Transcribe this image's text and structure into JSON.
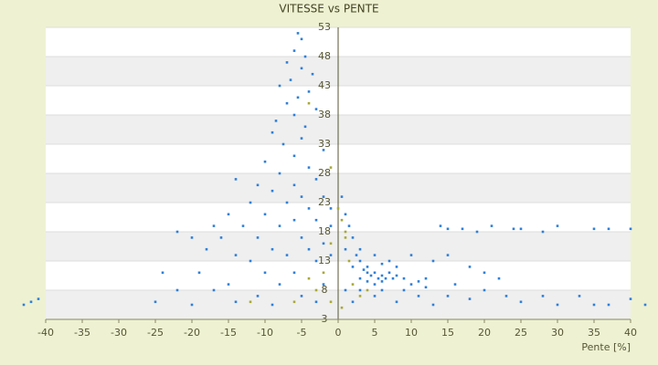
{
  "chart_data": {
    "type": "scatter",
    "title": "VITESSE vs PENTE",
    "x_label": "Pente [%]",
    "xlim": [
      -40,
      40
    ],
    "xticks": [
      -40,
      -35,
      -30,
      -25,
      -20,
      -15,
      -10,
      -5,
      0,
      5,
      10,
      15,
      20,
      25,
      30,
      35,
      40
    ],
    "ylim": [
      3,
      53
    ],
    "yticks": [
      3,
      8,
      13,
      18,
      23,
      28,
      33,
      38,
      43,
      48,
      53
    ],
    "grid": true,
    "series": [
      {
        "color": "#2f7fd8",
        "x": [
          -5.5,
          -5,
          -6,
          -4.5,
          -7,
          -5,
          -3.5,
          -6.5,
          -8,
          -4,
          -5.5,
          -7,
          -3,
          -6,
          -8.5,
          -4.5,
          -9,
          -5,
          -7.5,
          -2,
          -6,
          -10,
          -4,
          -8,
          -3,
          -11,
          -6,
          -14,
          -9,
          -5,
          -2,
          -12,
          -7,
          -4,
          -1,
          -15,
          -10,
          -6,
          -3,
          -17,
          -13,
          -8,
          -1,
          -22,
          -20,
          -16,
          -11,
          -5,
          -2,
          -18,
          -9,
          -4,
          -14,
          -7,
          -1,
          -12,
          -3,
          -24,
          -19,
          -10,
          -6,
          -15,
          -8,
          -2,
          -22,
          -17,
          -11,
          -5,
          -25,
          -20,
          -14,
          -9,
          -43,
          -42,
          -41,
          -3,
          0.5,
          1,
          1.5,
          2,
          1,
          2.5,
          3,
          2,
          3.5,
          4,
          4.5,
          5,
          5.5,
          6,
          6.5,
          7,
          7.5,
          8,
          3,
          4,
          5,
          6,
          9,
          10,
          11,
          12,
          4,
          6,
          8,
          3,
          5,
          7,
          10,
          13,
          15,
          18,
          20,
          22,
          14,
          15,
          17,
          19,
          21,
          24,
          25,
          28,
          30,
          35,
          37,
          40,
          15,
          18,
          20,
          23,
          25,
          28,
          30,
          33,
          35,
          37,
          40,
          42,
          44,
          2,
          5,
          8,
          11,
          13,
          1,
          3,
          6,
          9,
          12,
          16
        ],
        "values": [
          52,
          51,
          49,
          48,
          47,
          46,
          45,
          44,
          43,
          42,
          41,
          40,
          39,
          38,
          37,
          36,
          35,
          34,
          33,
          32,
          31,
          30,
          29,
          28,
          27,
          26,
          26,
          27,
          25,
          24,
          24,
          23,
          23,
          22,
          22,
          21,
          21,
          20,
          20,
          19,
          19,
          19,
          19,
          18,
          17,
          17,
          17,
          17,
          16,
          15,
          15,
          15,
          14,
          14,
          14,
          13,
          13,
          11,
          11,
          11,
          11,
          9,
          9,
          9,
          8,
          8,
          7,
          7,
          6,
          5.5,
          6,
          5.5,
          5.5,
          6,
          6.5,
          6,
          24,
          21,
          19,
          17,
          15,
          14,
          13,
          12,
          11.5,
          11,
          10.5,
          11,
          10,
          10.5,
          10,
          11,
          10,
          10.5,
          10,
          9.5,
          9,
          9.5,
          10,
          9,
          9.5,
          10,
          12,
          12.5,
          12,
          15,
          14,
          13,
          14,
          13,
          14,
          12,
          11,
          10,
          19,
          18.5,
          18.5,
          18,
          19,
          18.5,
          18.5,
          18,
          19,
          18.5,
          18.5,
          18.5,
          7,
          6.5,
          8,
          7,
          6,
          7,
          5.5,
          7,
          5.5,
          5.5,
          6.5,
          5.5,
          5.5,
          6,
          7,
          6,
          7,
          5.5,
          8,
          8,
          8,
          8,
          8.5,
          9
        ]
      },
      {
        "color": "#a8a838",
        "x": [
          0,
          0.5,
          1,
          -1,
          1.5,
          -2,
          2,
          -3,
          3,
          -1,
          0.5,
          -4,
          4,
          -6,
          -12,
          -1,
          -4,
          1
        ],
        "values": [
          22,
          20,
          17,
          16,
          13,
          11,
          9,
          8,
          7,
          6,
          5,
          10,
          8,
          6,
          6,
          29,
          40,
          18
        ]
      }
    ]
  }
}
